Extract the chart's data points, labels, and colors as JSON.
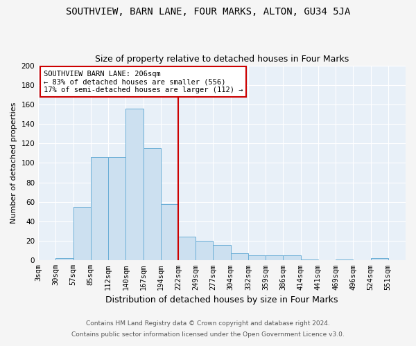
{
  "title": "SOUTHVIEW, BARN LANE, FOUR MARKS, ALTON, GU34 5JA",
  "subtitle": "Size of property relative to detached houses in Four Marks",
  "xlabel": "Distribution of detached houses by size in Four Marks",
  "ylabel": "Number of detached properties",
  "bin_labels": [
    "3sqm",
    "30sqm",
    "57sqm",
    "85sqm",
    "112sqm",
    "140sqm",
    "167sqm",
    "194sqm",
    "222sqm",
    "249sqm",
    "277sqm",
    "304sqm",
    "332sqm",
    "359sqm",
    "386sqm",
    "414sqm",
    "441sqm",
    "469sqm",
    "496sqm",
    "524sqm",
    "551sqm"
  ],
  "bar_heights": [
    0,
    2,
    55,
    106,
    106,
    156,
    115,
    58,
    24,
    20,
    16,
    7,
    5,
    5,
    5,
    1,
    0,
    1,
    0,
    2,
    0
  ],
  "bar_color": "#cce0f0",
  "bar_edge_color": "#6aaed6",
  "vline_color": "#cc0000",
  "annotation_text": "SOUTHVIEW BARN LANE: 206sqm\n← 83% of detached houses are smaller (556)\n17% of semi-detached houses are larger (112) →",
  "annotation_box_color": "#ffffff",
  "annotation_box_edge_color": "#cc0000",
  "footer1": "Contains HM Land Registry data © Crown copyright and database right 2024.",
  "footer2": "Contains public sector information licensed under the Open Government Licence v3.0.",
  "ylim": [
    0,
    200
  ],
  "yticks": [
    0,
    20,
    40,
    60,
    80,
    100,
    120,
    140,
    160,
    180,
    200
  ],
  "fig_bg_color": "#f5f5f5",
  "plot_bg_color": "#e8f0f8",
  "title_fontsize": 10,
  "subtitle_fontsize": 9,
  "xlabel_fontsize": 9,
  "ylabel_fontsize": 8,
  "tick_fontsize": 7.5,
  "footer_fontsize": 6.5,
  "annotation_fontsize": 7.5
}
